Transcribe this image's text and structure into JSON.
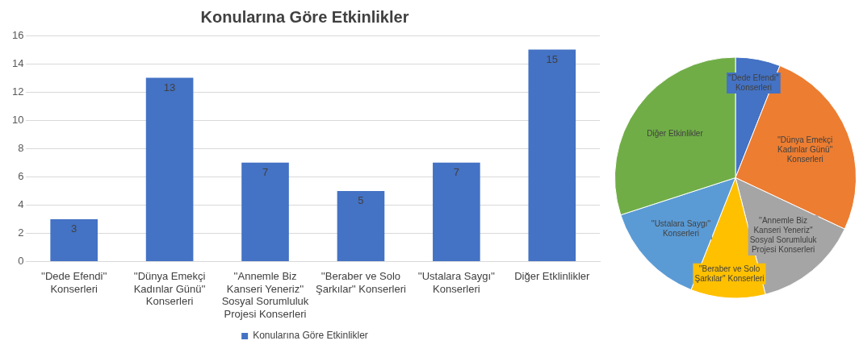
{
  "chart_data": [
    {
      "type": "bar",
      "title": "Konularına Göre Etkinlikler",
      "categories": [
        "''Dede Efendi'' Konserleri",
        "''Dünya Emekçi Kadınlar Günü'' Konserleri",
        "''Annemle Biz Kanseri Yeneriz'' Sosyal Sorumluluk Projesi Konserleri",
        "''Beraber ve Solo Şarkılar'' Konserleri",
        "''Ustalara Saygı'' Konserleri",
        "Diğer Etklinlikler"
      ],
      "series": [
        {
          "name": "Konularına Göre Etkinlikler",
          "color": "#4472c4",
          "values": [
            3,
            13,
            7,
            5,
            7,
            15
          ]
        }
      ],
      "ylim": [
        0,
        16
      ],
      "yticks": [
        0,
        2,
        4,
        6,
        8,
        10,
        12,
        14,
        16
      ],
      "grid": "y",
      "legend": "bottom",
      "data_labels": true
    },
    {
      "type": "pie",
      "categories": [
        "''Dede Efendi'' Konserleri",
        "''Dünya Emekçi Kadınlar Günü'' Konserleri",
        "''Annemle Biz Kanseri Yeneriz'' Sosyal Sorumluluk Projesi Konserleri",
        "''Beraber ve Solo Şarkılar'' Konserleri",
        "''Ustalara Saygı'' Konserleri",
        "Diğer Etkinlikler"
      ],
      "values": [
        6,
        26,
        14,
        10,
        14,
        30
      ],
      "colors": [
        "#4472c4",
        "#ed7d31",
        "#a5a5a5",
        "#ffc000",
        "#5b9bd5",
        "#70ad47"
      ]
    }
  ]
}
